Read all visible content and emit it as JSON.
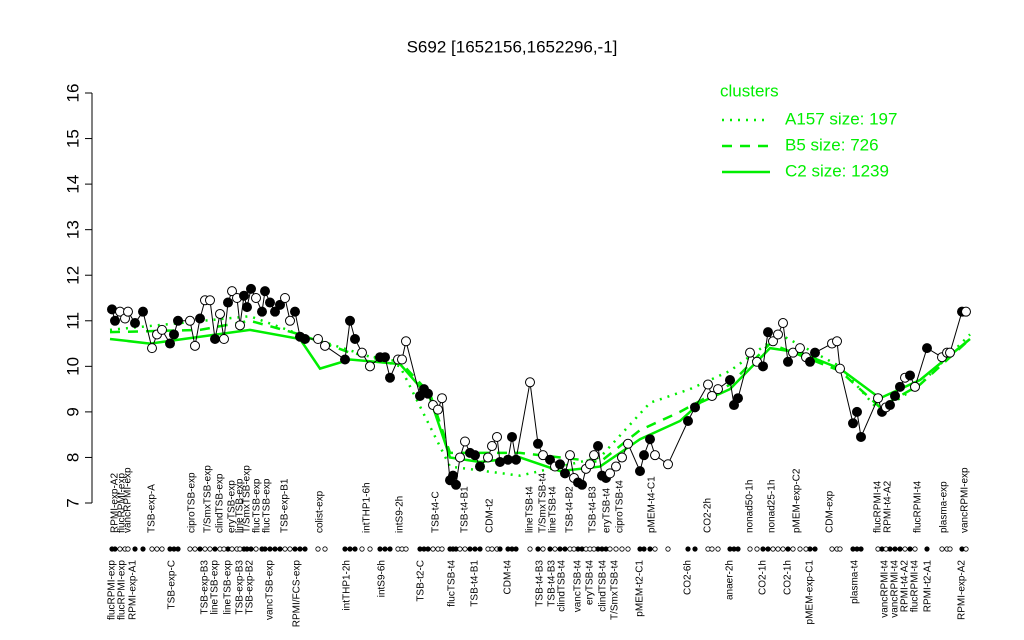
{
  "chart_data": {
    "type": "profile",
    "title": "S692 [1652156,1652296,-1]",
    "xlim": [
      95,
      980
    ],
    "ylim": [
      7,
      16
    ],
    "yticks": [
      7,
      8,
      9,
      10,
      11,
      12,
      13,
      14,
      15,
      16
    ],
    "points": {
      "x": [
        112,
        115,
        120,
        125,
        128,
        135,
        143,
        152,
        157,
        162,
        170,
        174,
        178,
        190,
        195,
        200,
        205,
        210,
        215,
        220,
        224,
        228,
        232,
        237,
        240,
        244,
        247,
        251,
        256,
        262,
        265,
        270,
        275,
        280,
        285,
        290,
        295,
        300,
        305,
        318,
        325,
        345,
        350,
        355,
        362,
        370,
        380,
        385,
        390,
        398,
        402,
        406,
        420,
        424,
        428,
        433,
        438,
        442,
        450,
        453,
        456,
        460,
        465,
        470,
        475,
        480,
        488,
        492,
        497,
        500,
        508,
        512,
        516,
        530,
        538,
        543,
        550,
        555,
        560,
        565,
        570,
        574,
        578,
        582,
        586,
        590,
        594,
        598,
        602,
        606,
        610,
        616,
        622,
        628,
        640,
        644,
        650,
        655,
        668,
        688,
        695,
        708,
        712,
        718,
        730,
        734,
        738,
        750,
        757,
        763,
        768,
        773,
        778,
        783,
        788,
        793,
        800,
        806,
        810,
        815,
        832,
        837,
        840,
        853,
        857,
        861,
        878,
        882,
        886,
        890,
        895,
        900,
        905,
        910,
        915,
        927,
        942,
        947,
        950,
        962,
        966
      ],
      "values": [
        11.25,
        11.0,
        11.2,
        11.05,
        11.2,
        10.95,
        11.2,
        10.4,
        10.7,
        10.8,
        10.5,
        10.7,
        11.0,
        11.0,
        10.45,
        11.05,
        11.45,
        11.45,
        10.6,
        11.15,
        10.6,
        11.4,
        11.65,
        11.5,
        10.9,
        11.55,
        11.3,
        11.7,
        11.5,
        11.2,
        11.65,
        11.4,
        11.2,
        11.35,
        11.5,
        11.0,
        11.2,
        10.65,
        10.6,
        10.6,
        10.45,
        10.15,
        11.0,
        10.6,
        10.3,
        10.0,
        10.2,
        10.2,
        9.75,
        10.15,
        10.15,
        10.55,
        9.35,
        9.5,
        9.4,
        9.15,
        9.05,
        9.3,
        7.5,
        7.6,
        7.4,
        8.0,
        8.35,
        8.1,
        8.05,
        7.8,
        8.0,
        8.25,
        8.45,
        7.9,
        7.95,
        8.45,
        7.95,
        9.65,
        8.3,
        8.05,
        7.95,
        7.8,
        7.85,
        7.65,
        8.05,
        7.55,
        7.45,
        7.4,
        7.75,
        7.85,
        8.05,
        8.25,
        7.6,
        7.55,
        7.65,
        7.8,
        8.0,
        8.3,
        7.7,
        8.05,
        8.4,
        8.05,
        7.85,
        8.8,
        9.1,
        9.6,
        9.35,
        9.5,
        9.7,
        9.15,
        9.3,
        10.3,
        10.1,
        10.0,
        10.75,
        10.55,
        10.7,
        10.95,
        10.1,
        10.3,
        10.4,
        10.2,
        10.1,
        10.3,
        10.5,
        10.55,
        9.95,
        8.75,
        9.0,
        8.45,
        9.3,
        9.0,
        9.1,
        9.15,
        9.35,
        9.55,
        9.75,
        9.8,
        9.55,
        10.4,
        10.2,
        10.3,
        10.3,
        11.2,
        11.2
      ],
      "filled": [
        true,
        true,
        false,
        false,
        false,
        true,
        true,
        false,
        false,
        false,
        true,
        true,
        true,
        false,
        false,
        true,
        false,
        false,
        true,
        false,
        false,
        true,
        false,
        false,
        false,
        true,
        true,
        true,
        false,
        true,
        true,
        true,
        true,
        true,
        false,
        false,
        true,
        true,
        true,
        false,
        false,
        true,
        true,
        true,
        false,
        false,
        true,
        true,
        true,
        false,
        false,
        false,
        true,
        true,
        true,
        false,
        false,
        false,
        true,
        true,
        true,
        false,
        false,
        true,
        true,
        true,
        false,
        false,
        false,
        true,
        true,
        true,
        true,
        false,
        true,
        false,
        true,
        false,
        true,
        true,
        false,
        false,
        true,
        true,
        false,
        false,
        false,
        true,
        true,
        true,
        false,
        false,
        false,
        false,
        true,
        true,
        true,
        false,
        false,
        true,
        true,
        false,
        false,
        false,
        true,
        true,
        true,
        false,
        false,
        true,
        true,
        false,
        false,
        false,
        true,
        false,
        false,
        false,
        true,
        true,
        false,
        false,
        false,
        true,
        true,
        true,
        false,
        true,
        false,
        true,
        true,
        true,
        false,
        true,
        false,
        true,
        false,
        false,
        false,
        true,
        false
      ]
    },
    "legend_title": "clusters",
    "series": [
      {
        "name": "A157 size: 197",
        "color": "#00ee00",
        "dash": "dotted",
        "x": [
          110,
          250,
          300,
          400,
          450,
          520,
          600,
          650,
          690,
          730,
          780,
          840,
          880,
          920,
          970
        ],
        "values": [
          10.8,
          11.1,
          10.7,
          10.0,
          7.8,
          7.6,
          8.0,
          9.2,
          9.5,
          9.9,
          10.7,
          10.0,
          9.0,
          9.6,
          10.7
        ]
      },
      {
        "name": "B5 size: 726",
        "color": "#00ee00",
        "dash": "dashed",
        "x": [
          110,
          200,
          250,
          300,
          350,
          400,
          430,
          450,
          520,
          600,
          640,
          680,
          730,
          770,
          840,
          880,
          920,
          970
        ],
        "values": [
          10.75,
          10.8,
          11.0,
          10.7,
          10.3,
          10.1,
          9.4,
          8.1,
          8.1,
          7.9,
          8.6,
          9.0,
          9.6,
          10.5,
          9.9,
          9.1,
          9.6,
          10.6
        ]
      },
      {
        "name": "C2 size: 1239",
        "color": "#00ee00",
        "dash": "solid",
        "x": [
          110,
          150,
          200,
          250,
          300,
          320,
          350,
          400,
          430,
          450,
          480,
          520,
          560,
          600,
          640,
          680,
          700,
          730,
          770,
          800,
          840,
          880,
          920,
          970
        ],
        "values": [
          10.6,
          10.5,
          10.65,
          10.8,
          10.6,
          9.95,
          10.15,
          10.05,
          9.3,
          8.0,
          7.9,
          8.0,
          7.7,
          7.8,
          8.4,
          8.8,
          9.2,
          9.5,
          10.4,
          10.3,
          9.95,
          9.3,
          9.7,
          10.6
        ]
      }
    ],
    "top_labels": {
      "x": [
        115,
        122,
        128,
        152,
        192,
        208,
        220,
        232,
        240,
        247,
        257,
        267,
        285,
        320,
        367,
        400,
        436,
        465,
        490,
        530,
        543,
        553,
        570,
        593,
        607,
        620,
        652,
        708,
        750,
        772,
        797,
        830,
        878,
        888,
        918,
        944,
        965
      ],
      "labels": [
        "RPMI-exp-A2",
        "flucRPMI-exp",
        "vancRPMI-exp",
        "TSB-exp-A",
        "ciproTSB-exp",
        "T/SmxTSB-exp",
        "clindTSB-exp",
        "eryTSB-exp",
        "lineTSB-exp",
        "T/SmxTSB-exp",
        "flucTSB-exp",
        "flucTSB-exp",
        "TSB-exp-B1",
        "colist-exp",
        "intTHP1-6h",
        "intS9-2h",
        "TSB-t4-C",
        "TSB-t4-B1",
        "CDM-t2",
        "lineTSB-t4",
        "T/SmxTSB-t4",
        "lineTSB-t4",
        "TSB-t4-B2",
        "TSB-t4-B3",
        "eryTSB-t4",
        "ciproTSB-t4",
        "pMEM-t4-C1",
        "CO2-2h",
        "nonad50-1h",
        "nonad25-1h",
        "pMEM-exp-C2",
        "CDM-exp",
        "flucRPMI-t4",
        "RPMI-t4-A2",
        "flucRPMI-t4",
        "plasma-exp",
        "vancRPMI-exp"
      ]
    },
    "bottom_labels": {
      "x": [
        112,
        122,
        133,
        172,
        205,
        215,
        228,
        240,
        250,
        270,
        297,
        347,
        382,
        421,
        452,
        475,
        508,
        540,
        552,
        562,
        578,
        590,
        603,
        615,
        640,
        688,
        730,
        763,
        788,
        810,
        855,
        885,
        895,
        905,
        915,
        928,
        962
      ],
      "labels": [
        "flucRPMI-exp",
        "flucRPMI-exp",
        "RPMI-exp-A1",
        "TSB-exp-C",
        "TSB-exp-B3",
        "lineTSB-exp",
        "lineTSB-exp",
        "TSB-exp-B3",
        "TSB-exp-B2",
        "vancTSB-exp",
        "RPMI/FCS-exp",
        "intTHP1-2h",
        "intS9-6h",
        "TSB-t2-C",
        "flucTSB-t4",
        "TSB-t4-B1",
        "CDM-t4",
        "TSB-t4-B3",
        "TSB-t4-B3",
        "clindTSB-t4",
        "vancTSB-t4",
        "eryTSB-t4",
        "clindTSB-t4",
        "T/SmxTSB-t4",
        "pMEM-t2-C1",
        "CO2-6h",
        "anaer-2h",
        "CO2-1h",
        "CO2-1h",
        "pMEM-exp-C1",
        "plasma-t4",
        "vancRPMI-t4",
        "vancRPMI-t4",
        "RPMI-t4-A2",
        "flucRPMI-t4",
        "RPMI-t2-A1",
        "RPMI-exp-A2"
      ]
    }
  }
}
